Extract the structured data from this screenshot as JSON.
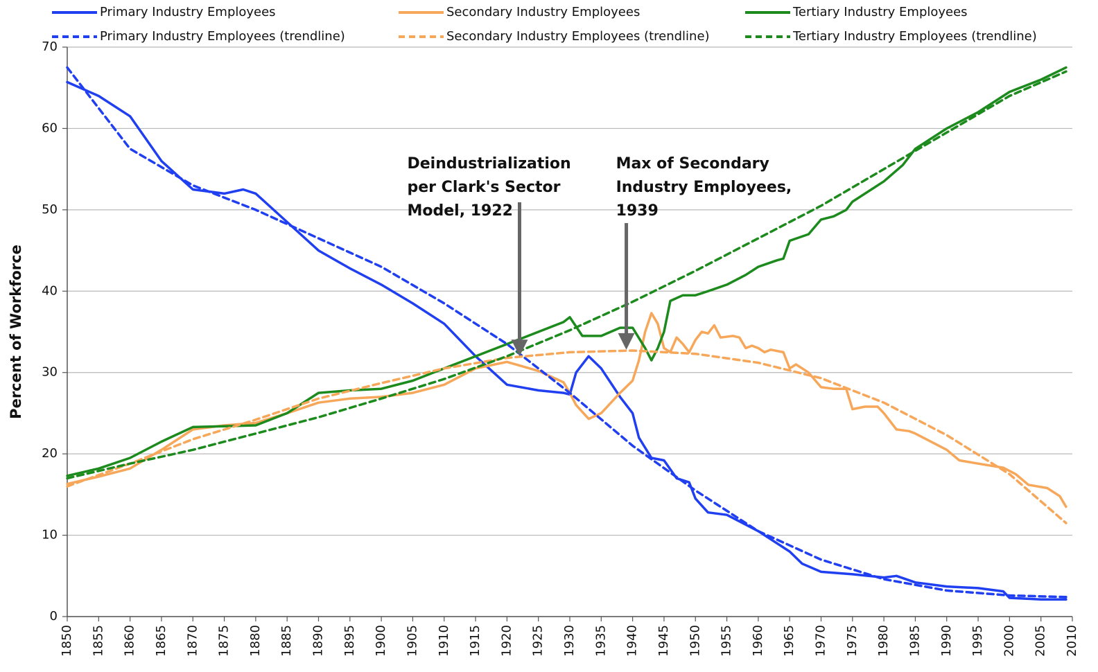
{
  "chart_data": {
    "type": "line",
    "ylabel": "Percent of Workforce",
    "xlim": [
      1850,
      2010
    ],
    "xticks": [
      1850,
      1855,
      1860,
      1865,
      1870,
      1875,
      1880,
      1885,
      1890,
      1895,
      1900,
      1905,
      1910,
      1915,
      1920,
      1925,
      1930,
      1935,
      1940,
      1945,
      1950,
      1955,
      1960,
      1965,
      1970,
      1975,
      1980,
      1985,
      1990,
      1995,
      2000,
      2005,
      2010
    ],
    "ylim": [
      0,
      70
    ],
    "yticks": [
      0,
      10,
      20,
      30,
      40,
      50,
      60,
      70
    ],
    "grid": true,
    "legend": "top",
    "series": [
      {
        "name": "Primary Industry Employees",
        "color": "#1f3ff0",
        "line_style": "solid",
        "x": [
          1850,
          1855,
          1860,
          1865,
          1870,
          1875,
          1878,
          1880,
          1885,
          1890,
          1895,
          1900,
          1905,
          1910,
          1915,
          1920,
          1925,
          1929,
          1930,
          1931,
          1933,
          1935,
          1938,
          1940,
          1941,
          1943,
          1945,
          1947,
          1949,
          1950,
          1952,
          1955,
          1960,
          1965,
          1967,
          1970,
          1975,
          1980,
          1982,
          1985,
          1990,
          1995,
          1999,
          2000,
          2005,
          2009
        ],
        "values": [
          65.7,
          64,
          61.5,
          56,
          52.5,
          52,
          52.5,
          52,
          48.5,
          45,
          42.8,
          40.8,
          38.5,
          36,
          32,
          28.5,
          27.8,
          27.5,
          27.3,
          30,
          32,
          30.5,
          27,
          25,
          22,
          19.5,
          19.2,
          17,
          16.5,
          14.5,
          12.8,
          12.5,
          10.5,
          8,
          6.5,
          5.5,
          5.2,
          4.8,
          5,
          4.2,
          3.7,
          3.5,
          3.1,
          2.3,
          2.1,
          2.1
        ]
      },
      {
        "name": "Secondary Industry Employees",
        "color": "#f6a75a",
        "line_style": "solid",
        "x": [
          1850,
          1855,
          1860,
          1865,
          1870,
          1875,
          1880,
          1885,
          1890,
          1895,
          1900,
          1905,
          1910,
          1915,
          1920,
          1925,
          1929,
          1930,
          1931,
          1933,
          1935,
          1938,
          1940,
          1941,
          1942,
          1943,
          1944,
          1945,
          1946,
          1947,
          1948,
          1949,
          1950,
          1951,
          1952,
          1953,
          1954,
          1956,
          1957,
          1958,
          1959,
          1960,
          1961,
          1962,
          1964,
          1965,
          1966,
          1968,
          1970,
          1972,
          1974,
          1975,
          1977,
          1979,
          1980,
          1982,
          1984,
          1985,
          1990,
          1992,
          1995,
          1999,
          2001,
          2003,
          2006,
          2008,
          2009
        ],
        "values": [
          16.3,
          17.2,
          18.2,
          20.5,
          23,
          23.5,
          23.8,
          25,
          26.3,
          26.8,
          27,
          27.5,
          28.5,
          30.5,
          31.3,
          30.2,
          28.8,
          27.5,
          26,
          24.3,
          25,
          27.5,
          29,
          31.5,
          35,
          37.3,
          36,
          33,
          32.5,
          34.3,
          33.5,
          32.5,
          34,
          35,
          34.8,
          35.8,
          34.3,
          34.5,
          34.3,
          33,
          33.3,
          33,
          32.5,
          32.8,
          32.5,
          30.5,
          31,
          30,
          28.2,
          28,
          28,
          25.5,
          25.8,
          25.8,
          25,
          23,
          22.8,
          22.5,
          20.5,
          19.2,
          18.8,
          18.3,
          17.5,
          16.2,
          15.8,
          14.8,
          13.5
        ]
      },
      {
        "name": "Tertiary Industry Employees",
        "color": "#1c8a1c",
        "line_style": "solid",
        "x": [
          1850,
          1855,
          1860,
          1865,
          1870,
          1875,
          1880,
          1885,
          1890,
          1895,
          1900,
          1905,
          1910,
          1915,
          1920,
          1925,
          1929,
          1930,
          1932,
          1935,
          1938,
          1940,
          1942,
          1943,
          1944,
          1945,
          1946,
          1948,
          1950,
          1952,
          1955,
          1958,
          1960,
          1963,
          1964,
          1965,
          1968,
          1970,
          1972,
          1974,
          1975,
          1980,
          1983,
          1985,
          1990,
          1995,
          2000,
          2005,
          2009
        ],
        "values": [
          17.3,
          18.2,
          19.5,
          21.5,
          23.3,
          23.4,
          23.5,
          25,
          27.5,
          27.8,
          28,
          29,
          30.5,
          32,
          33.5,
          35,
          36.2,
          36.8,
          34.5,
          34.5,
          35.5,
          35.5,
          33,
          31.5,
          33,
          35,
          38.8,
          39.5,
          39.5,
          40,
          40.8,
          42,
          43,
          43.8,
          44,
          46.2,
          47,
          48.8,
          49.2,
          50,
          51,
          53.5,
          55.5,
          57.5,
          60,
          62,
          64.5,
          66,
          67.5
        ]
      },
      {
        "name": "Primary Industry Employees (trendline)",
        "color": "#1f3ff0",
        "line_style": "dashed",
        "x": [
          1850,
          1860,
          1870,
          1880,
          1890,
          1900,
          1910,
          1920,
          1930,
          1940,
          1950,
          1960,
          1970,
          1980,
          1990,
          2000,
          2009
        ],
        "values": [
          67.5,
          57.5,
          53,
          50,
          46.5,
          43,
          38.5,
          33.5,
          27.5,
          21,
          15.5,
          10.5,
          7,
          4.6,
          3.2,
          2.6,
          2.4
        ]
      },
      {
        "name": "Secondary Industry Employees (trendline)",
        "color": "#f6a75a",
        "line_style": "dashed",
        "x": [
          1850,
          1860,
          1870,
          1880,
          1890,
          1900,
          1910,
          1920,
          1930,
          1940,
          1950,
          1960,
          1970,
          1980,
          1990,
          2000,
          2009
        ],
        "values": [
          16,
          18.8,
          21.8,
          24.2,
          26.8,
          28.7,
          30.5,
          31.8,
          32.5,
          32.7,
          32.3,
          31.2,
          29.3,
          26.3,
          22.3,
          17.5,
          11.5
        ]
      },
      {
        "name": "Tertiary Industry Employees (trendline)",
        "color": "#1c8a1c",
        "line_style": "dashed",
        "x": [
          1850,
          1860,
          1870,
          1880,
          1890,
          1900,
          1910,
          1920,
          1930,
          1940,
          1950,
          1960,
          1970,
          1980,
          1990,
          2000,
          2009
        ],
        "values": [
          17,
          18.8,
          20.5,
          22.5,
          24.5,
          26.8,
          29.2,
          32,
          35.2,
          38.7,
          42.5,
          46.5,
          50.5,
          55,
          59.5,
          64,
          67
        ]
      }
    ],
    "annotations": [
      {
        "lines": [
          "Deindustrialization",
          "per Clark's Sector",
          "Model, 1922"
        ],
        "x": 1922,
        "y": 32
      },
      {
        "lines": [
          "Max of Secondary",
          "Industry Employees,",
          "1939"
        ],
        "x": 1939,
        "y": 32.8
      }
    ]
  }
}
